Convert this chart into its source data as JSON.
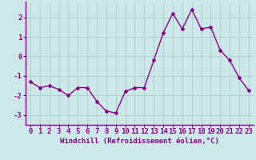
{
  "x": [
    0,
    1,
    2,
    3,
    4,
    5,
    6,
    7,
    8,
    9,
    10,
    11,
    12,
    13,
    14,
    15,
    16,
    17,
    18,
    19,
    20,
    21,
    22,
    23
  ],
  "y": [
    -1.3,
    -1.6,
    -1.5,
    -1.7,
    -2.0,
    -1.6,
    -1.6,
    -2.3,
    -2.8,
    -2.9,
    -1.8,
    -1.6,
    -1.6,
    -0.2,
    1.2,
    2.2,
    1.4,
    2.4,
    1.4,
    1.5,
    0.3,
    -0.2,
    -1.1,
    -1.75
  ],
  "line_color": "#8B008B",
  "marker": "D",
  "marker_size": 2.0,
  "line_width": 1.0,
  "xlabel": "Windchill (Refroidissement éolien,°C)",
  "xlabel_fontsize": 6.5,
  "background_color": "#cce8e8",
  "grid_color": "#aacccc",
  "tick_fontsize": 6.5,
  "ylim": [
    -3.5,
    2.8
  ],
  "yticks": [
    -3,
    -2,
    -1,
    0,
    1,
    2
  ],
  "xlim": [
    -0.5,
    23.5
  ],
  "xticks": [
    0,
    1,
    2,
    3,
    4,
    5,
    6,
    7,
    8,
    9,
    10,
    11,
    12,
    13,
    14,
    15,
    16,
    17,
    18,
    19,
    20,
    21,
    22,
    23
  ]
}
